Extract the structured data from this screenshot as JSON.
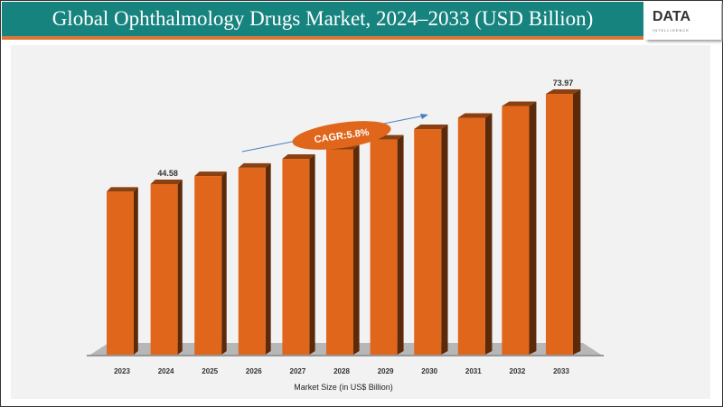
{
  "header": {
    "title": "Global Ophthalmology Drugs Market, 2024–2033 (USD Billion)",
    "logo": "DATA",
    "logo_sub": "INTELLIGENCE"
  },
  "chart_data": {
    "type": "bar",
    "title": "Global Ophthalmology Drugs Market, 2024–2033 (USD Billion)",
    "xlabel": "Market Size (in US$ Billion)",
    "categories": [
      "2023",
      "2024",
      "2025",
      "2026",
      "2027",
      "2028",
      "2029",
      "2030",
      "2031",
      "2032",
      "2033"
    ],
    "values": [
      42.1,
      44.58,
      47.2,
      49.9,
      52.8,
      55.9,
      59.1,
      62.5,
      66.2,
      70.0,
      73.97
    ],
    "data_labels": {
      "1": "44.58",
      "10": "73.97"
    },
    "annotation": "CAGR:5.8%",
    "bar_color": "#e0661b",
    "grid": false
  }
}
